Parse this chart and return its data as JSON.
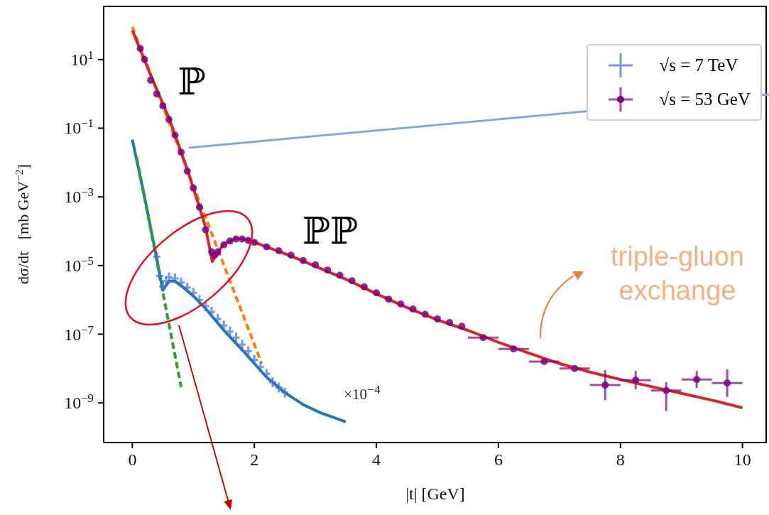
{
  "chart_data": {
    "type": "scatter",
    "xlabel": "|t| [GeV]",
    "ylabel": "dσ/dt   [mb GeV$^{−2}$]",
    "log": "y",
    "xlim": [
      -0.47,
      10.4
    ],
    "xticks": [
      0,
      2,
      4,
      6,
      8,
      10
    ],
    "ylim": [
      7e-11,
      370
    ],
    "yticks": [
      {
        "value": 10,
        "label": "10$^{1}$"
      },
      {
        "value": 0.1,
        "label": "10$^{−1}$"
      },
      {
        "value": 0.001,
        "label": "10$^{−3}$"
      },
      {
        "value": 1e-05,
        "label": "10$^{−5}$"
      },
      {
        "value": 1e-07,
        "label": "10$^{−7}$"
      },
      {
        "value": 1e-09,
        "label": "10$^{−9}$"
      }
    ],
    "legend": "top right",
    "annotations": [
      "ℙ",
      "ℙℙ",
      "×10$^{−4}$",
      "triple-gluon exchange"
    ],
    "series": [
      {
        "name": "√s = 7 TeV",
        "marker": "cross",
        "color": "#4169e1",
        "x": [
          0.4,
          0.45,
          0.5,
          0.55,
          0.6,
          0.7,
          0.8,
          0.9,
          1.0,
          1.1,
          1.2,
          1.3,
          1.4,
          1.5,
          1.6,
          1.7,
          1.8,
          1.9,
          2.0,
          2.1,
          2.2,
          2.3,
          2.4,
          2.5
        ],
        "values": [
          1.8e-05,
          5e-06,
          2.5e-06,
          3.5e-06,
          4.5e-06,
          4.2e-06,
          3.2e-06,
          2.3e-06,
          1.6e-06,
          1e-06,
          6.6e-07,
          4.5e-07,
          2.8e-07,
          1.8e-07,
          1.2e-07,
          8e-08,
          5e-08,
          3.2e-08,
          1.8e-08,
          1.1e-08,
          7e-09,
          4e-09,
          2.8e-09,
          2e-09
        ]
      },
      {
        "type": "line",
        "line_style": "solid",
        "color": "#1f77b4",
        "x": [
          0,
          0.2,
          0.4,
          0.5,
          0.6,
          0.7,
          0.85,
          1.0,
          1.2,
          1.5,
          1.8,
          2.0,
          2.2,
          2.5,
          2.8,
          3.1,
          3.5
        ],
        "values": [
          0.046,
          0.001,
          1.6e-05,
          1.9e-06,
          3.5e-06,
          3.5e-06,
          2.2e-06,
          1.3e-06,
          5.6e-07,
          1.3e-07,
          3.5e-08,
          1.4e-08,
          5.6e-09,
          2e-09,
          8.9e-10,
          5e-10,
          2.8e-10
        ]
      },
      {
        "type": "line",
        "line_style": "dashed",
        "color": "#2ca02c",
        "x": [
          0.07,
          0.8
        ],
        "values": [
          0.0145,
          2.9e-09
        ]
      },
      {
        "type": "line",
        "line_style": "dashed",
        "color": "#ff7f0e",
        "x": [
          0,
          2.12
        ],
        "values": [
          89,
          1.4e-08
        ]
      },
      {
        "type": "line",
        "line_style": "solid",
        "color": "#d62728",
        "x": [
          0,
          0.3,
          0.6,
          0.9,
          1.1,
          1.2,
          1.31,
          1.4,
          1.5,
          1.7,
          1.9,
          2.2,
          2.6,
          3.0,
          3.5,
          4.0,
          4.5,
          5.0,
          5.5,
          6.0,
          6.5,
          7.0,
          7.5,
          8.0,
          8.5,
          9.0,
          9.5,
          10
        ],
        "values": [
          71,
          3.5,
          0.2,
          0.0063,
          0.0005,
          0.00013,
          1.3e-05,
          2.5e-05,
          4.2e-05,
          6.3e-05,
          5.6e-05,
          3.5e-05,
          1.9e-05,
          9.5e-06,
          4e-06,
          1.5e-06,
          6e-07,
          2.6e-07,
          1.3e-07,
          5.8e-08,
          2.8e-08,
          1.4e-08,
          7.9e-09,
          4.8e-09,
          3e-09,
          1.9e-09,
          1.2e-09,
          7.2e-10
        ]
      },
      {
        "name": "√s = 53 GeV",
        "marker": "circle",
        "color": "#800080",
        "x": [
          0.13,
          0.2,
          0.3,
          0.4,
          0.5,
          0.6,
          0.7,
          0.8,
          0.9,
          1.0,
          1.1,
          1.2,
          1.3,
          1.35,
          1.4,
          1.5,
          1.6,
          1.7,
          1.8,
          1.9,
          2.0,
          2.2,
          2.4,
          2.6,
          2.8,
          3.0,
          3.2,
          3.4,
          3.6,
          3.8,
          4.0,
          4.2,
          4.4,
          4.6,
          4.8,
          5.0,
          5.2,
          5.4,
          5.75,
          6.25,
          6.75,
          7.25,
          7.75,
          8.25,
          8.75,
          9.25,
          9.75
        ],
        "values": [
          21,
          10,
          2.5,
          1,
          0.45,
          0.18,
          0.063,
          0.02,
          0.0056,
          0.0018,
          0.0005,
          0.00011,
          2.5e-05,
          2e-05,
          2.5e-05,
          4e-05,
          5.2e-05,
          5.9e-05,
          5.9e-05,
          5.4e-05,
          4.7e-05,
          3.5e-05,
          2.7e-05,
          2e-05,
          1.4e-05,
          1.05e-05,
          7.4e-06,
          5.2e-06,
          3.6e-06,
          2.4e-06,
          1.6e-06,
          1.05e-06,
          7.6e-07,
          5.4e-07,
          3.8e-07,
          2.8e-07,
          2.2e-07,
          1.7e-07,
          8e-08,
          3.7e-08,
          1.6e-08,
          1e-08,
          3.3e-09,
          4.6e-09,
          2.3e-09,
          4.8e-09,
          3.8e-09
        ],
        "errors": [
          null,
          null,
          null,
          null,
          null,
          null,
          null,
          null,
          null,
          null,
          null,
          null,
          null,
          null,
          null,
          null,
          null,
          null,
          null,
          null,
          null,
          null,
          null,
          null,
          null,
          null,
          null,
          null,
          null,
          null,
          null,
          null,
          null,
          null,
          null,
          null,
          null,
          null,
          null,
          null,
          null,
          null,
          [
            1.2e-09,
            9e-09
          ],
          [
            2.5e-09,
            8.5e-09
          ],
          [
            5.8e-10,
            4e-09
          ],
          [
            2.7e-09,
            8.5e-09
          ],
          [
            1.5e-09,
            9.5e-09
          ]
        ],
        "xerrors": [
          null,
          null,
          null,
          null,
          null,
          null,
          null,
          null,
          null,
          null,
          null,
          null,
          null,
          null,
          null,
          null,
          null,
          null,
          null,
          null,
          null,
          null,
          null,
          null,
          null,
          null,
          null,
          null,
          null,
          null,
          null,
          null,
          null,
          null,
          null,
          null,
          null,
          null,
          0.25,
          0.25,
          0.25,
          0.25,
          0.25,
          0.25,
          0.25,
          0.25,
          0.25
        ]
      }
    ]
  }
}
